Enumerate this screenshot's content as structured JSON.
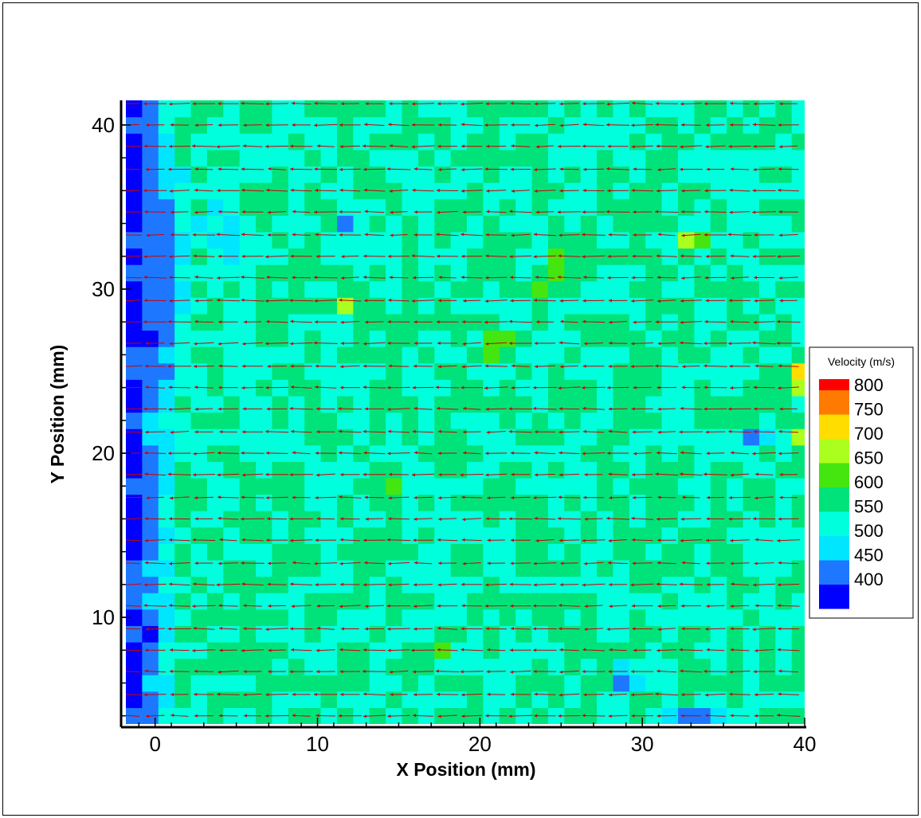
{
  "chart_data": {
    "type": "heatmap",
    "subtype": "contour-with-vector-field",
    "title": "",
    "xlabel": "X Position (mm)",
    "ylabel": "Y Position (mm)",
    "xlim": [
      -1.8,
      40
    ],
    "ylim": [
      3.5,
      41.5
    ],
    "x_ticks": [
      {
        "value": 0,
        "label": "0"
      },
      {
        "value": 10,
        "label": "10"
      },
      {
        "value": 20,
        "label": "20"
      },
      {
        "value": 30,
        "label": "30"
      },
      {
        "value": 40,
        "label": "40"
      }
    ],
    "y_ticks": [
      {
        "value": 10,
        "label": "10"
      },
      {
        "value": 20,
        "label": "20"
      },
      {
        "value": 30,
        "label": "30"
      },
      {
        "value": 40,
        "label": "40"
      }
    ],
    "field_grid": {
      "x": [
        -2,
        0,
        2,
        4,
        6,
        8,
        10,
        12,
        14,
        16,
        18,
        20,
        22,
        24,
        26,
        28,
        30,
        32,
        34,
        36,
        38,
        40
      ],
      "y": [
        4,
        6,
        8,
        10,
        12,
        14,
        16,
        18,
        20,
        22,
        24,
        26,
        28,
        30,
        32,
        34,
        36,
        38,
        40,
        42
      ],
      "background_level": 550,
      "features": [
        {
          "kind": "low",
          "x": -1,
          "y": 30,
          "value": 400,
          "sx": 2.5,
          "sy": 8
        },
        {
          "kind": "low",
          "x": 4.5,
          "y": 33,
          "value": 450,
          "sx": 1.2,
          "sy": 2.2
        },
        {
          "kind": "low",
          "x": 12,
          "y": 34,
          "value": 420,
          "sx": 0.6,
          "sy": 0.6
        },
        {
          "kind": "low",
          "x": 10.5,
          "y": 27.5,
          "value": 420,
          "sx": 0.6,
          "sy": 0.6
        },
        {
          "kind": "low",
          "x": 37,
          "y": 21,
          "value": 430,
          "sx": 0.7,
          "sy": 0.6
        },
        {
          "kind": "low",
          "x": 29,
          "y": 6,
          "value": 400,
          "sx": 0.8,
          "sy": 0.8
        },
        {
          "kind": "low",
          "x": 33,
          "y": 3.5,
          "value": 400,
          "sx": 2.0,
          "sy": 0.9
        },
        {
          "kind": "high",
          "x": 25,
          "y": 31.5,
          "value": 770,
          "sx": 0.6,
          "sy": 0.6
        },
        {
          "kind": "high",
          "x": 12,
          "y": 29,
          "value": 720,
          "sx": 0.6,
          "sy": 0.6
        },
        {
          "kind": "high",
          "x": 33,
          "y": 33,
          "value": 700,
          "sx": 0.6,
          "sy": 0.6
        },
        {
          "kind": "high",
          "x": 21,
          "y": 26.5,
          "value": 690,
          "sx": 0.6,
          "sy": 1.2
        },
        {
          "kind": "high",
          "x": 40,
          "y": 24.7,
          "value": 760,
          "sx": 1.0,
          "sy": 1.0
        },
        {
          "kind": "high",
          "x": 40,
          "y": 21,
          "value": 700,
          "sx": 0.9,
          "sy": 0.9
        },
        {
          "kind": "high",
          "x": 24,
          "y": 30,
          "value": 680,
          "sx": 0.5,
          "sy": 0.5
        },
        {
          "kind": "high",
          "x": 17,
          "y": 7.5,
          "value": 650,
          "sx": 0.6,
          "sy": 0.6
        },
        {
          "kind": "high",
          "x": 14.5,
          "y": 18,
          "value": 640,
          "sx": 0.6,
          "sy": 0.6
        }
      ]
    },
    "vectors": {
      "direction": "leftward (-x)",
      "color": "#cc0000",
      "rows_y": [
        4,
        5.3,
        6.7,
        8,
        9.3,
        10.7,
        12,
        13.3,
        14.7,
        16,
        17.3,
        18.7,
        20,
        21.3,
        22.7,
        24,
        25.3,
        26.7,
        28,
        29.3,
        30.7,
        32,
        33.3,
        34.7,
        36,
        37.3,
        38.7,
        40,
        41.3
      ],
      "cols_x": [
        -1.5,
        0,
        1.5,
        3,
        4.5,
        6,
        7.5,
        9,
        10.5,
        12,
        13.5,
        15,
        16.5,
        18,
        19.5,
        21,
        22.5,
        24,
        25.5,
        27,
        28.5,
        30,
        31.5,
        33,
        34.5,
        36,
        37.5,
        39
      ]
    },
    "legend": {
      "title": "Velocity (m/s)",
      "placement": "right",
      "levels": [
        {
          "value": 800,
          "label": "800",
          "color": "#ff0000"
        },
        {
          "value": 750,
          "label": "750",
          "color": "#ff7a00"
        },
        {
          "value": 700,
          "label": "700",
          "color": "#ffdd00"
        },
        {
          "value": 650,
          "label": "650",
          "color": "#aaff1e"
        },
        {
          "value": 600,
          "label": "600",
          "color": "#45e60f"
        },
        {
          "value": 550,
          "label": "550",
          "color": "#00e37a"
        },
        {
          "value": 500,
          "label": "500",
          "color": "#00ffdc"
        },
        {
          "value": 450,
          "label": "450",
          "color": "#00e6ff"
        },
        {
          "value": 400,
          "label": "400",
          "color": "#1e78ff"
        },
        {
          "value": 350,
          "label": "",
          "color": "#0000ff"
        }
      ]
    },
    "grid": false
  }
}
